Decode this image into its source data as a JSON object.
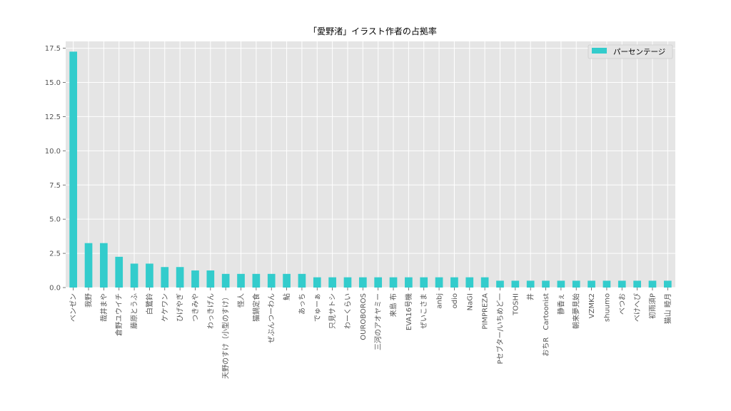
{
  "chart_data": {
    "type": "bar",
    "title": "「愛野渚」イラスト作者の占拠率",
    "xlabel": "",
    "ylabel": "",
    "ylim": [
      0,
      18
    ],
    "yticks": [
      "0.0",
      "2.5",
      "5.0",
      "7.5",
      "10.0",
      "12.5",
      "15.0",
      "17.5"
    ],
    "grid": true,
    "legend_position": "top-right",
    "colors": {
      "bar": "#33cccc",
      "plot_bg": "#e5e5e5",
      "grid": "#ffffff"
    },
    "categories": [
      "ベンゼン",
      "我野",
      "哉井まや",
      "倉野ユウイチ",
      "藤原とうふ",
      "白鷺鈴",
      "ケケワン",
      "ひげやぎ",
      "つきみや",
      "わっきげん",
      "天野のすけ（小型のすけ）",
      "怪人",
      "猫鍋定食",
      "ぜぶんつーわん",
      "鮎",
      "あっち",
      "でゅーぁ",
      "只見サトシ",
      "わーくらい",
      "OUROBOROS",
      "三河のアオヤミー",
      "来島 布",
      "EVA16号機",
      "ぜいこさま",
      "anbj",
      "odio",
      "NaGI",
      "PIMPREZA",
      "Pセブター/いちめど一",
      "TOSHI",
      "井",
      "おちR　Cartoonist",
      "静香ぇ",
      "朝来夢見始",
      "VZMK2",
      "shuumo",
      "べつお",
      "べけへぴ",
      "初雨須P",
      "猫山 睦月"
    ],
    "series": [
      {
        "name": "パーセンテージ",
        "values": [
          17.25,
          3.25,
          3.25,
          2.25,
          1.75,
          1.75,
          1.5,
          1.5,
          1.25,
          1.25,
          1.0,
          1.0,
          1.0,
          1.0,
          1.0,
          1.0,
          0.75,
          0.75,
          0.75,
          0.75,
          0.75,
          0.75,
          0.75,
          0.75,
          0.75,
          0.75,
          0.75,
          0.75,
          0.5,
          0.5,
          0.5,
          0.5,
          0.5,
          0.5,
          0.5,
          0.5,
          0.5,
          0.5,
          0.5,
          0.5
        ]
      }
    ]
  }
}
